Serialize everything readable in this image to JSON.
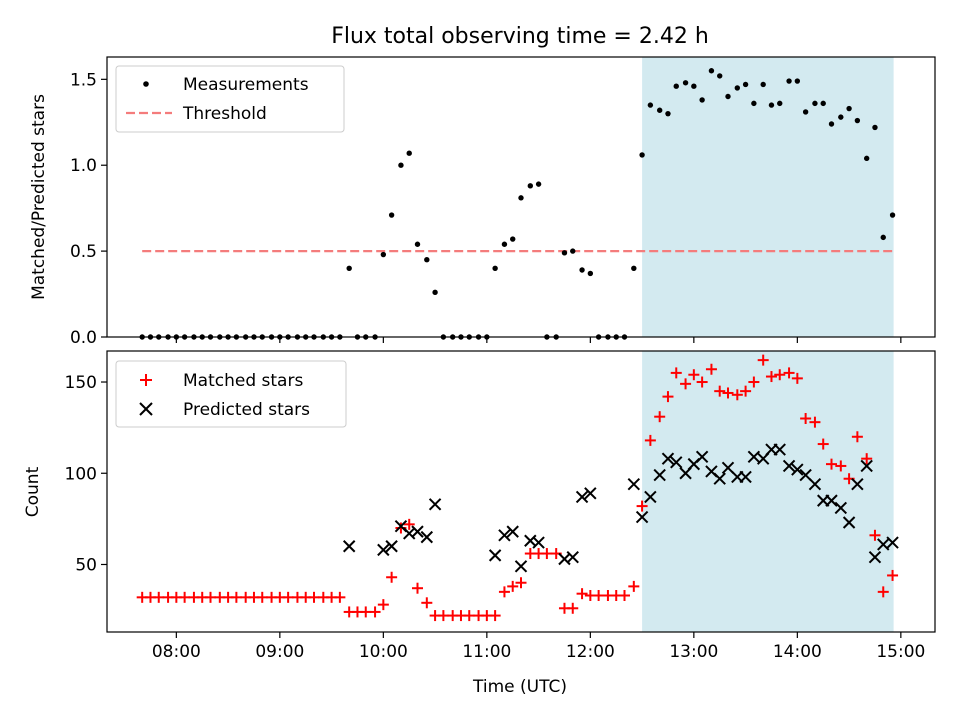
{
  "chart_data": [
    {
      "type": "scatter",
      "title": "Flux total observing time = 2.42 h",
      "xlabel": "",
      "ylabel": "Matched/Predicted stars",
      "xlim": [
        7.33,
        15.33
      ],
      "ylim": [
        0,
        1.63
      ],
      "yticks": [
        0.0,
        0.5,
        1.0,
        1.5
      ],
      "ytick_labels": [
        "0.0",
        "0.5",
        "1.0",
        "1.5"
      ],
      "xticks": [
        8,
        9,
        10,
        11,
        12,
        13,
        14,
        15
      ],
      "shaded_region": {
        "x_start": 12.5,
        "x_end": 14.93,
        "color": "#d3eaf0"
      },
      "legend_position": "upper-left",
      "series": [
        {
          "name": "Measurements",
          "kind": "scatter",
          "color": "#000000",
          "x": [
            7.67,
            7.75,
            7.83,
            7.92,
            8.0,
            8.08,
            8.17,
            8.25,
            8.33,
            8.42,
            8.5,
            8.58,
            8.67,
            8.75,
            8.83,
            8.92,
            9.0,
            9.08,
            9.17,
            9.25,
            9.33,
            9.42,
            9.5,
            9.58,
            9.67,
            9.75,
            9.83,
            9.92,
            10.0,
            10.08,
            10.17,
            10.25,
            10.33,
            10.42,
            10.5,
            10.58,
            10.67,
            10.75,
            10.83,
            10.92,
            11.0,
            11.08,
            11.17,
            11.25,
            11.33,
            11.42,
            11.5,
            11.58,
            11.67,
            11.75,
            11.83,
            11.92,
            12.0,
            12.08,
            12.17,
            12.25,
            12.33,
            12.42,
            12.5,
            12.58,
            12.67,
            12.75,
            12.83,
            12.92,
            13.0,
            13.08,
            13.17,
            13.25,
            13.33,
            13.42,
            13.5,
            13.58,
            13.67,
            13.75,
            13.83,
            13.92,
            14.0,
            14.08,
            14.17,
            14.25,
            14.33,
            14.42,
            14.5,
            14.58,
            14.67,
            14.75,
            14.83,
            14.92
          ],
          "y": [
            0,
            0,
            0,
            0,
            0,
            0,
            0,
            0,
            0,
            0,
            0,
            0,
            0,
            0,
            0,
            0,
            0,
            0,
            0,
            0,
            0,
            0,
            0,
            0,
            0.4,
            0,
            0,
            0,
            0.48,
            0.71,
            1.0,
            1.07,
            0.54,
            0.45,
            0.26,
            0,
            0,
            0,
            0,
            0,
            0,
            0.4,
            0.54,
            0.57,
            0.81,
            0.88,
            0.89,
            0,
            0,
            0.49,
            0.5,
            0.39,
            0.37,
            0,
            0,
            0,
            0,
            0.4,
            1.06,
            1.35,
            1.32,
            1.3,
            1.46,
            1.48,
            1.46,
            1.38,
            1.55,
            1.52,
            1.4,
            1.45,
            1.47,
            1.36,
            1.47,
            1.35,
            1.36,
            1.49,
            1.49,
            1.31,
            1.36,
            1.36,
            1.24,
            1.28,
            1.33,
            1.26,
            1.04,
            1.22,
            0.58,
            0.71
          ]
        },
        {
          "name": "Threshold",
          "kind": "dashed-line",
          "color": "#f47c7c",
          "x": [
            7.67,
            14.92
          ],
          "y": [
            0.5,
            0.5
          ]
        }
      ]
    },
    {
      "type": "scatter",
      "title": "",
      "xlabel": "Time (UTC)",
      "ylabel": "Count",
      "xlim": [
        7.33,
        15.33
      ],
      "ylim": [
        13,
        167
      ],
      "yticks": [
        50,
        100,
        150
      ],
      "ytick_labels": [
        "50",
        "100",
        "150"
      ],
      "xticks": [
        8,
        9,
        10,
        11,
        12,
        13,
        14,
        15
      ],
      "xtick_labels": [
        "08:00",
        "09:00",
        "10:00",
        "11:00",
        "12:00",
        "13:00",
        "14:00",
        "15:00"
      ],
      "shaded_region": {
        "x_start": 12.5,
        "x_end": 14.93,
        "color": "#d3eaf0"
      },
      "legend_position": "upper-left",
      "series": [
        {
          "name": "Matched stars",
          "kind": "plus",
          "color": "#ff0000",
          "x": [
            7.67,
            7.75,
            7.83,
            7.92,
            8.0,
            8.08,
            8.17,
            8.25,
            8.33,
            8.42,
            8.5,
            8.58,
            8.67,
            8.75,
            8.83,
            8.92,
            9.0,
            9.08,
            9.17,
            9.25,
            9.33,
            9.42,
            9.5,
            9.58,
            9.67,
            9.75,
            9.83,
            9.92,
            10.0,
            10.08,
            10.17,
            10.25,
            10.33,
            10.42,
            10.5,
            10.58,
            10.67,
            10.75,
            10.83,
            10.92,
            11.0,
            11.08,
            11.17,
            11.25,
            11.33,
            11.42,
            11.5,
            11.58,
            11.67,
            11.75,
            11.83,
            11.92,
            12.0,
            12.08,
            12.17,
            12.25,
            12.33,
            12.42,
            12.5,
            12.58,
            12.67,
            12.75,
            12.83,
            12.92,
            13.0,
            13.08,
            13.17,
            13.25,
            13.33,
            13.42,
            13.5,
            13.58,
            13.67,
            13.75,
            13.83,
            13.92,
            14.0,
            14.08,
            14.17,
            14.25,
            14.33,
            14.42,
            14.5,
            14.58,
            14.67,
            14.75,
            14.83,
            14.92
          ],
          "y": [
            32,
            32,
            32,
            32,
            32,
            32,
            32,
            32,
            32,
            32,
            32,
            32,
            32,
            32,
            32,
            32,
            32,
            32,
            32,
            32,
            32,
            32,
            32,
            32,
            24,
            24,
            24,
            24,
            28,
            43,
            70,
            72,
            37,
            29,
            22,
            22,
            22,
            22,
            22,
            22,
            22,
            22,
            35,
            38,
            40,
            56,
            56,
            56,
            56,
            26,
            26,
            34,
            33,
            33,
            33,
            33,
            33,
            38,
            82,
            118,
            131,
            142,
            155,
            149,
            154,
            150,
            157,
            145,
            144,
            143,
            145,
            150,
            162,
            153,
            154,
            155,
            152,
            130,
            128,
            116,
            105,
            104,
            97,
            120,
            108,
            66,
            35,
            44
          ]
        },
        {
          "name": "Predicted stars",
          "kind": "x",
          "color": "#000000",
          "x": [
            9.67,
            10.0,
            10.08,
            10.17,
            10.25,
            10.33,
            10.42,
            10.5,
            11.08,
            11.17,
            11.25,
            11.33,
            11.42,
            11.5,
            11.75,
            11.83,
            11.92,
            12.0,
            12.42,
            12.5,
            12.58,
            12.67,
            12.75,
            12.83,
            12.92,
            13.0,
            13.08,
            13.17,
            13.25,
            13.33,
            13.42,
            13.5,
            13.58,
            13.67,
            13.75,
            13.83,
            13.92,
            14.0,
            14.08,
            14.17,
            14.25,
            14.33,
            14.42,
            14.5,
            14.58,
            14.67,
            14.75,
            14.83,
            14.92
          ],
          "y": [
            60,
            58,
            60,
            71,
            67,
            68,
            65,
            83,
            55,
            66,
            68,
            49,
            63,
            62,
            53,
            54,
            87,
            89,
            94,
            76,
            87,
            99,
            108,
            106,
            100,
            105,
            109,
            101,
            97,
            103,
            98,
            98,
            109,
            108,
            113,
            113,
            104,
            102,
            99,
            94,
            85,
            85,
            81,
            73,
            94,
            104,
            54,
            61,
            62
          ]
        }
      ]
    }
  ]
}
